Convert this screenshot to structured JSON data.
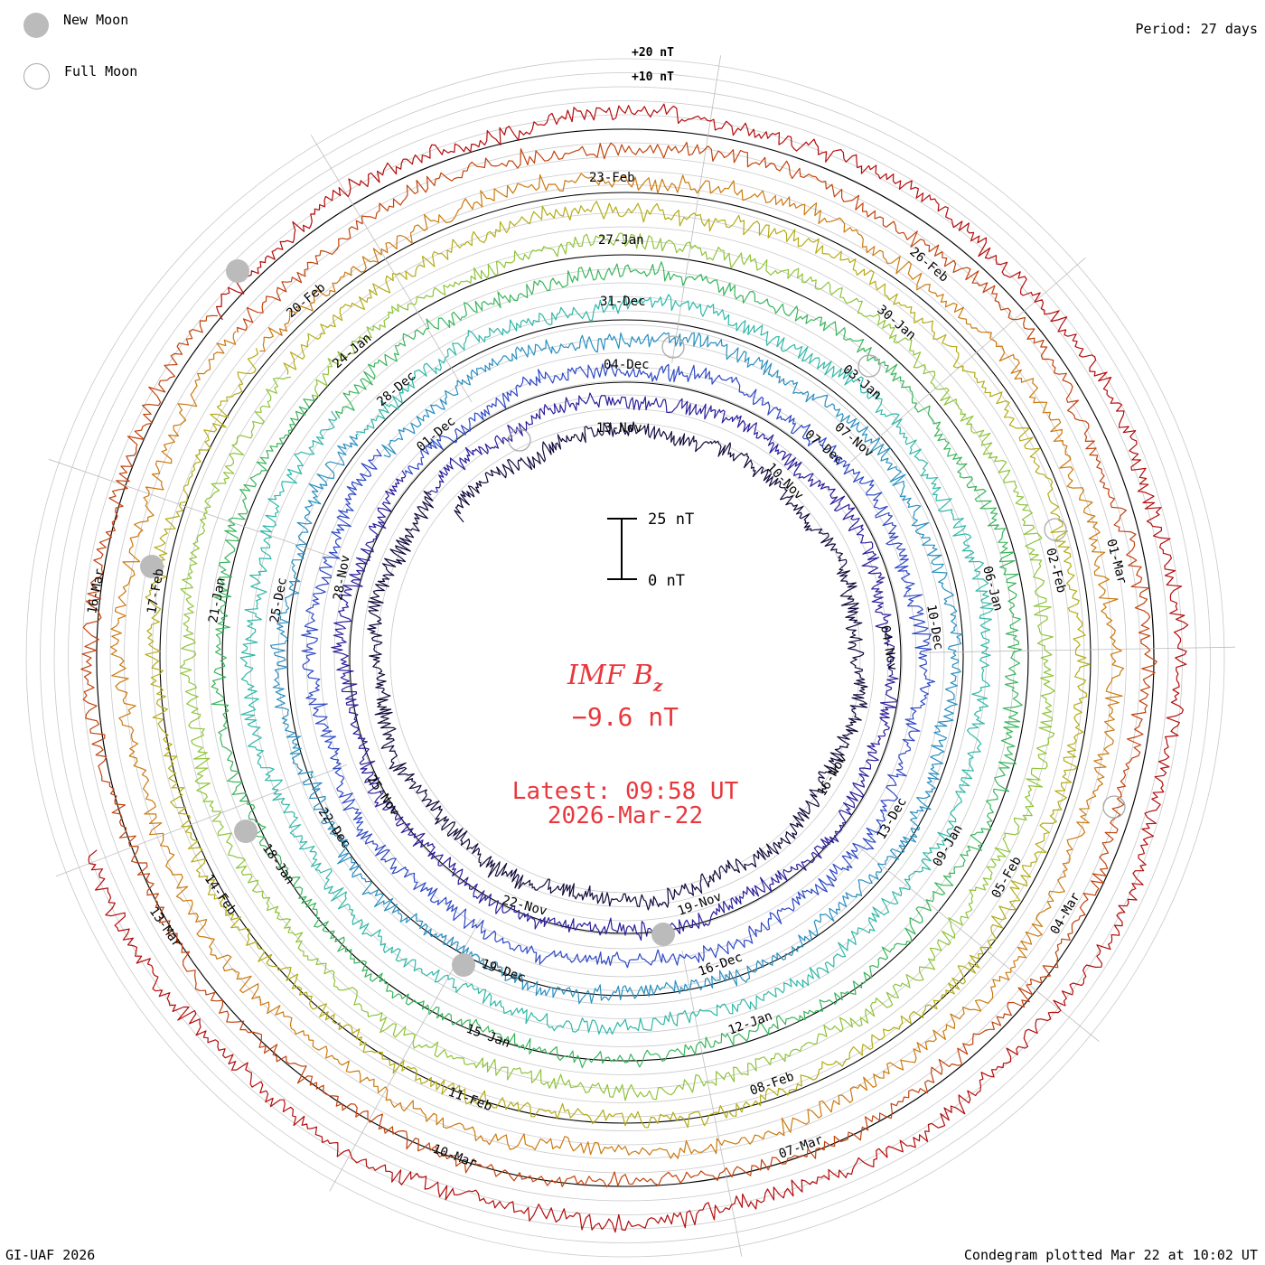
{
  "header": {
    "period": "Period: 27 days"
  },
  "legend": {
    "new_moon": "New Moon",
    "full_moon": "Full Moon"
  },
  "footer": {
    "credit": "GI-UAF 2026",
    "plotted": "Condegram plotted Mar 22 at 10:02 UT"
  },
  "center": {
    "title_main": "IMF B",
    "title_sub": "z",
    "value": "−9.6 nT",
    "latest": "Latest: 09:58 UT",
    "date": "2026-Mar-22"
  },
  "scale": {
    "top_label": "25 nT",
    "bottom_label": "0 nT"
  },
  "reference": {
    "plus20": "+20 nT",
    "plus10": "+10 nT"
  },
  "colors": {
    "text_red": "#e8383d",
    "rotation_colors": [
      "#120a3a",
      "#2a1e9a",
      "#2e49c6",
      "#2a8fc0",
      "#30b8a8",
      "#3ab55c",
      "#8fc43a",
      "#b4ac18",
      "#cc7a10",
      "#c1440e",
      "#b40c0c"
    ]
  },
  "chart_data": {
    "type": "condegram",
    "title": "IMF Bz",
    "units": "nT",
    "period_days": 27,
    "latest_value": -9.6,
    "latest_time": "09:58 UT",
    "latest_date": "2026-Mar-22",
    "reference_levels": [
      20,
      10
    ],
    "scale_bar": [
      0,
      25
    ],
    "rotations": [
      {
        "index": 0,
        "labels": [
          "13-Nov",
          "10-Nov",
          "16-Nov"
        ]
      },
      {
        "index": 1,
        "labels": [
          "07-Nov",
          "04-Nov",
          "19-Nov",
          "22-Nov",
          "25-Nov",
          "28-Nov",
          "01-Dec"
        ]
      },
      {
        "index": 2,
        "labels": [
          "04-Dec",
          "07-Dec",
          "10-Dec",
          "13-Dec",
          "16-Dec"
        ]
      },
      {
        "index": 3,
        "labels": [
          "31-Dec",
          "03-Jan",
          "06-Jan",
          "09-Jan",
          "12-Jan",
          "19-Dec",
          "22-Dec",
          "25-Dec",
          "28-Dec"
        ]
      },
      {
        "index": 4,
        "labels": [
          "27-Jan",
          "30-Jan",
          "02-Feb",
          "05-Feb",
          "08-Feb",
          "15-Jan",
          "18-Jan",
          "21-Jan",
          "24-Jan"
        ]
      },
      {
        "index": 5,
        "labels": [
          "23-Feb",
          "26-Feb",
          "01-Mar",
          "04-Mar",
          "07-Mar",
          "11-Feb",
          "14-Feb",
          "17-Feb",
          "20-Feb"
        ]
      },
      {
        "index": 6,
        "labels": [
          "10-Mar",
          "13-Mar",
          "16-Mar"
        ]
      }
    ],
    "new_moon_dates": [
      "20-Nov",
      "19-Dec",
      "18-Jan",
      "17-Feb",
      "19-Mar"
    ],
    "full_moon_dates": [
      "05-Nov",
      "04-Dec",
      "03-Jan",
      "01-Feb",
      "03-Mar"
    ]
  }
}
